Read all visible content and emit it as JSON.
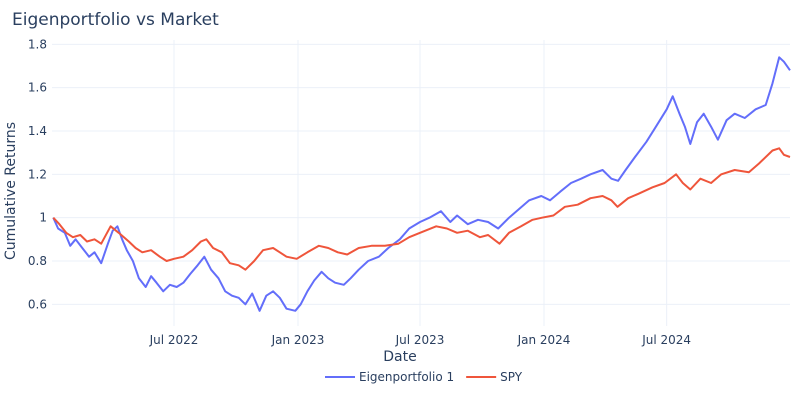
{
  "chart_data": {
    "type": "line",
    "title": "Eigenportfolio vs Market",
    "xlabel": "Date",
    "ylabel": "Cumulative Returns",
    "xlim": [
      "2022-01-01",
      "2024-12-31"
    ],
    "ylim": [
      0.5,
      1.82
    ],
    "x_ticks": [
      {
        "date": "2022-07-01",
        "label": "Jul 2022"
      },
      {
        "date": "2023-01-01",
        "label": "Jan 2023"
      },
      {
        "date": "2023-07-01",
        "label": "Jul 2023"
      },
      {
        "date": "2024-01-01",
        "label": "Jan 2024"
      },
      {
        "date": "2024-07-01",
        "label": "Jul 2024"
      }
    ],
    "y_ticks": [
      {
        "value": 0.6,
        "label": "0.6"
      },
      {
        "value": 0.8,
        "label": "0.8"
      },
      {
        "value": 1.0,
        "label": "1"
      },
      {
        "value": 1.2,
        "label": "1.2"
      },
      {
        "value": 1.4,
        "label": "1.4"
      },
      {
        "value": 1.6,
        "label": "1.6"
      },
      {
        "value": 1.8,
        "label": "1.8"
      }
    ],
    "grid": true,
    "legend_position": "bottom-center",
    "series": [
      {
        "name": "Eigenportfolio 1",
        "color": "#636efa",
        "points": [
          [
            "2022-01-03",
            1.0
          ],
          [
            "2022-01-10",
            0.95
          ],
          [
            "2022-01-20",
            0.93
          ],
          [
            "2022-01-28",
            0.87
          ],
          [
            "2022-02-05",
            0.9
          ],
          [
            "2022-02-15",
            0.86
          ],
          [
            "2022-02-25",
            0.82
          ],
          [
            "2022-03-05",
            0.84
          ],
          [
            "2022-03-15",
            0.79
          ],
          [
            "2022-03-25",
            0.88
          ],
          [
            "2022-04-01",
            0.94
          ],
          [
            "2022-04-08",
            0.96
          ],
          [
            "2022-04-15",
            0.9
          ],
          [
            "2022-04-22",
            0.85
          ],
          [
            "2022-05-01",
            0.8
          ],
          [
            "2022-05-10",
            0.72
          ],
          [
            "2022-05-20",
            0.68
          ],
          [
            "2022-05-28",
            0.73
          ],
          [
            "2022-06-05",
            0.7
          ],
          [
            "2022-06-15",
            0.66
          ],
          [
            "2022-06-25",
            0.69
          ],
          [
            "2022-07-05",
            0.68
          ],
          [
            "2022-07-15",
            0.7
          ],
          [
            "2022-07-25",
            0.74
          ],
          [
            "2022-08-05",
            0.78
          ],
          [
            "2022-08-15",
            0.82
          ],
          [
            "2022-08-25",
            0.76
          ],
          [
            "2022-09-05",
            0.72
          ],
          [
            "2022-09-15",
            0.66
          ],
          [
            "2022-09-25",
            0.64
          ],
          [
            "2022-10-05",
            0.63
          ],
          [
            "2022-10-15",
            0.6
          ],
          [
            "2022-10-25",
            0.65
          ],
          [
            "2022-11-05",
            0.57
          ],
          [
            "2022-11-15",
            0.64
          ],
          [
            "2022-11-25",
            0.66
          ],
          [
            "2022-12-05",
            0.63
          ],
          [
            "2022-12-15",
            0.58
          ],
          [
            "2022-12-28",
            0.57
          ],
          [
            "2023-01-05",
            0.6
          ],
          [
            "2023-01-15",
            0.66
          ],
          [
            "2023-01-25",
            0.71
          ],
          [
            "2023-02-05",
            0.75
          ],
          [
            "2023-02-15",
            0.72
          ],
          [
            "2023-02-25",
            0.7
          ],
          [
            "2023-03-10",
            0.69
          ],
          [
            "2023-03-20",
            0.72
          ],
          [
            "2023-04-01",
            0.76
          ],
          [
            "2023-04-15",
            0.8
          ],
          [
            "2023-05-01",
            0.82
          ],
          [
            "2023-05-15",
            0.86
          ],
          [
            "2023-06-01",
            0.9
          ],
          [
            "2023-06-15",
            0.95
          ],
          [
            "2023-07-01",
            0.98
          ],
          [
            "2023-07-15",
            1.0
          ],
          [
            "2023-08-01",
            1.03
          ],
          [
            "2023-08-15",
            0.98
          ],
          [
            "2023-08-25",
            1.01
          ],
          [
            "2023-09-10",
            0.97
          ],
          [
            "2023-09-25",
            0.99
          ],
          [
            "2023-10-10",
            0.98
          ],
          [
            "2023-10-25",
            0.95
          ],
          [
            "2023-11-10",
            1.0
          ],
          [
            "2023-11-25",
            1.04
          ],
          [
            "2023-12-10",
            1.08
          ],
          [
            "2023-12-28",
            1.1
          ],
          [
            "2024-01-10",
            1.08
          ],
          [
            "2024-01-25",
            1.12
          ],
          [
            "2024-02-10",
            1.16
          ],
          [
            "2024-02-25",
            1.18
          ],
          [
            "2024-03-10",
            1.2
          ],
          [
            "2024-03-28",
            1.22
          ],
          [
            "2024-04-10",
            1.18
          ],
          [
            "2024-04-20",
            1.17
          ],
          [
            "2024-05-01",
            1.22
          ],
          [
            "2024-05-15",
            1.28
          ],
          [
            "2024-06-01",
            1.35
          ],
          [
            "2024-06-15",
            1.42
          ],
          [
            "2024-07-01",
            1.5
          ],
          [
            "2024-07-10",
            1.56
          ],
          [
            "2024-07-20",
            1.48
          ],
          [
            "2024-07-28",
            1.42
          ],
          [
            "2024-08-05",
            1.34
          ],
          [
            "2024-08-15",
            1.44
          ],
          [
            "2024-08-25",
            1.48
          ],
          [
            "2024-09-05",
            1.42
          ],
          [
            "2024-09-15",
            1.36
          ],
          [
            "2024-09-28",
            1.45
          ],
          [
            "2024-10-10",
            1.48
          ],
          [
            "2024-10-25",
            1.46
          ],
          [
            "2024-11-10",
            1.5
          ],
          [
            "2024-11-25",
            1.52
          ],
          [
            "2024-12-05",
            1.62
          ],
          [
            "2024-12-15",
            1.74
          ],
          [
            "2024-12-22",
            1.72
          ],
          [
            "2024-12-31",
            1.68
          ]
        ]
      },
      {
        "name": "SPY",
        "color": "#ef553b",
        "points": [
          [
            "2022-01-03",
            1.0
          ],
          [
            "2022-01-12",
            0.97
          ],
          [
            "2022-01-22",
            0.93
          ],
          [
            "2022-02-01",
            0.91
          ],
          [
            "2022-02-12",
            0.92
          ],
          [
            "2022-02-22",
            0.89
          ],
          [
            "2022-03-05",
            0.9
          ],
          [
            "2022-03-15",
            0.88
          ],
          [
            "2022-03-29",
            0.96
          ],
          [
            "2022-04-10",
            0.93
          ],
          [
            "2022-04-25",
            0.89
          ],
          [
            "2022-05-05",
            0.86
          ],
          [
            "2022-05-15",
            0.84
          ],
          [
            "2022-05-28",
            0.85
          ],
          [
            "2022-06-10",
            0.82
          ],
          [
            "2022-06-20",
            0.8
          ],
          [
            "2022-07-01",
            0.81
          ],
          [
            "2022-07-15",
            0.82
          ],
          [
            "2022-07-28",
            0.85
          ],
          [
            "2022-08-10",
            0.89
          ],
          [
            "2022-08-18",
            0.9
          ],
          [
            "2022-08-28",
            0.86
          ],
          [
            "2022-09-10",
            0.84
          ],
          [
            "2022-09-22",
            0.79
          ],
          [
            "2022-10-05",
            0.78
          ],
          [
            "2022-10-15",
            0.76
          ],
          [
            "2022-10-28",
            0.8
          ],
          [
            "2022-11-10",
            0.85
          ],
          [
            "2022-11-25",
            0.86
          ],
          [
            "2022-12-05",
            0.84
          ],
          [
            "2022-12-15",
            0.82
          ],
          [
            "2022-12-30",
            0.81
          ],
          [
            "2023-01-15",
            0.84
          ],
          [
            "2023-02-01",
            0.87
          ],
          [
            "2023-02-15",
            0.86
          ],
          [
            "2023-03-01",
            0.84
          ],
          [
            "2023-03-15",
            0.83
          ],
          [
            "2023-04-01",
            0.86
          ],
          [
            "2023-04-20",
            0.87
          ],
          [
            "2023-05-10",
            0.87
          ],
          [
            "2023-05-30",
            0.88
          ],
          [
            "2023-06-15",
            0.91
          ],
          [
            "2023-07-01",
            0.93
          ],
          [
            "2023-07-25",
            0.96
          ],
          [
            "2023-08-10",
            0.95
          ],
          [
            "2023-08-25",
            0.93
          ],
          [
            "2023-09-10",
            0.94
          ],
          [
            "2023-09-28",
            0.91
          ],
          [
            "2023-10-10",
            0.92
          ],
          [
            "2023-10-27",
            0.88
          ],
          [
            "2023-11-10",
            0.93
          ],
          [
            "2023-11-28",
            0.96
          ],
          [
            "2023-12-15",
            0.99
          ],
          [
            "2023-12-29",
            1.0
          ],
          [
            "2024-01-15",
            1.01
          ],
          [
            "2024-02-01",
            1.05
          ],
          [
            "2024-02-20",
            1.06
          ],
          [
            "2024-03-10",
            1.09
          ],
          [
            "2024-03-28",
            1.1
          ],
          [
            "2024-04-10",
            1.08
          ],
          [
            "2024-04-19",
            1.05
          ],
          [
            "2024-05-05",
            1.09
          ],
          [
            "2024-05-20",
            1.11
          ],
          [
            "2024-06-10",
            1.14
          ],
          [
            "2024-06-28",
            1.16
          ],
          [
            "2024-07-15",
            1.2
          ],
          [
            "2024-07-25",
            1.16
          ],
          [
            "2024-08-05",
            1.13
          ],
          [
            "2024-08-20",
            1.18
          ],
          [
            "2024-09-05",
            1.16
          ],
          [
            "2024-09-20",
            1.2
          ],
          [
            "2024-10-10",
            1.22
          ],
          [
            "2024-10-31",
            1.21
          ],
          [
            "2024-11-15",
            1.25
          ],
          [
            "2024-12-05",
            1.31
          ],
          [
            "2024-12-15",
            1.32
          ],
          [
            "2024-12-22",
            1.29
          ],
          [
            "2024-12-31",
            1.28
          ]
        ]
      }
    ]
  }
}
